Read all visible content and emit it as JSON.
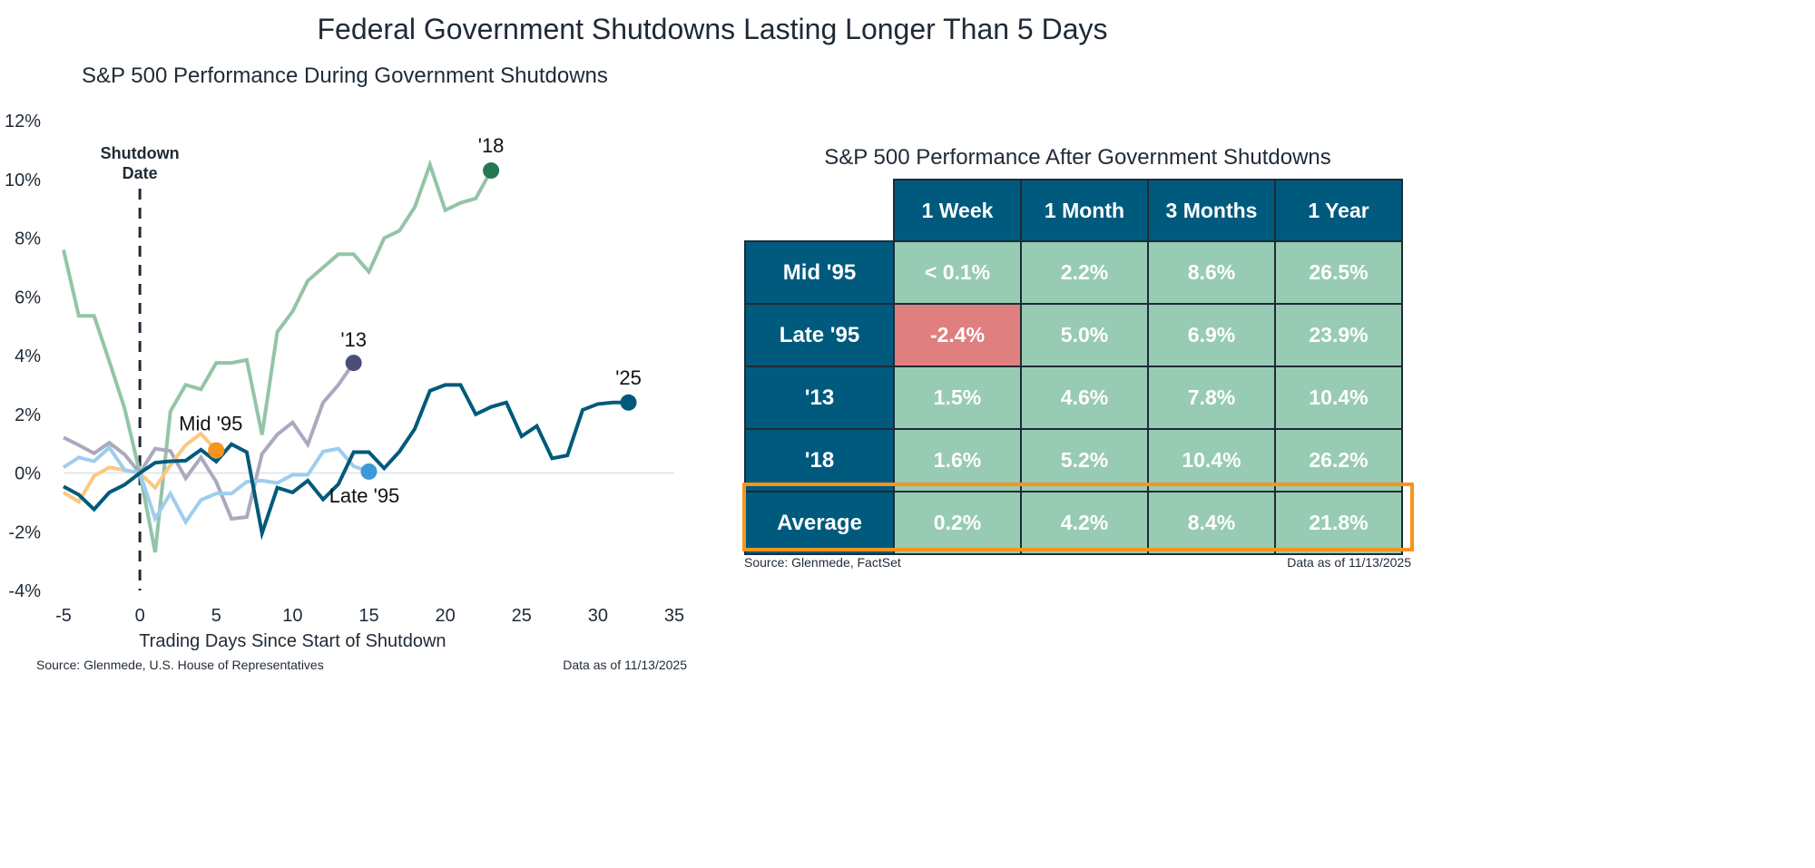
{
  "title": "Federal Government Shutdowns Lasting Longer Than 5 Days",
  "chart_data": [
    {
      "type": "line",
      "title": "S&P 500 Performance During Government Shutdowns",
      "xlabel": "Trading Days Since Start of Shutdown",
      "ylabel": "",
      "xlim": [
        -5,
        35
      ],
      "ylim": [
        -4,
        12
      ],
      "xticks": [
        "-5",
        "0",
        "5",
        "10",
        "15",
        "20",
        "25",
        "30",
        "35"
      ],
      "yticks": [
        "-4%",
        "-2%",
        "0%",
        "2%",
        "4%",
        "6%",
        "8%",
        "10%",
        "12%"
      ],
      "grid": false,
      "annotation": "Shutdown Date",
      "series": [
        {
          "name": "'18",
          "color": "#94c4a8",
          "dot_color": "#237a52",
          "x_start": -5,
          "values": [
            7.6,
            5.35,
            5.35,
            3.8,
            2.2,
            0,
            -2.7,
            2.1,
            3.0,
            2.85,
            3.75,
            3.75,
            3.85,
            1.3,
            4.8,
            5.5,
            6.55,
            7.0,
            7.45,
            7.45,
            6.85,
            8.0,
            8.25,
            9.05,
            10.5,
            8.95,
            9.2,
            9.35,
            10.3
          ]
        },
        {
          "name": "'13",
          "color": "#a9aabf",
          "dot_color": "#4b4f78",
          "x_start": -5,
          "values": [
            1.21,
            0.95,
            0.67,
            1.03,
            0.63,
            0,
            0.83,
            0.75,
            -0.18,
            0.53,
            -0.3,
            -1.56,
            -1.5,
            0.65,
            1.31,
            1.72,
            0.97,
            2.4,
            3.0,
            3.75
          ]
        },
        {
          "name": "Mid '95",
          "color": "#fcc780",
          "dot_color": "#f7941d",
          "x_start": -5,
          "values": [
            -0.66,
            -0.98,
            -0.1,
            0.19,
            0.1,
            0,
            -0.5,
            0.27,
            0.95,
            1.34,
            0.77
          ]
        },
        {
          "name": "Late '95",
          "color": "#9fcdee",
          "dot_color": "#3d98d8",
          "x_start": -5,
          "values": [
            0.19,
            0.53,
            0.4,
            0.87,
            0.1,
            0,
            -1.55,
            -0.7,
            -1.67,
            -0.92,
            -0.7,
            -0.7,
            -0.3,
            -0.26,
            -0.34,
            -0.06,
            -0.06,
            0.73,
            0.83,
            0.23,
            0.05
          ]
        },
        {
          "name": "'25",
          "color": "#005a7a",
          "dot_color": "#005a7a",
          "x_start": -5,
          "values": [
            -0.46,
            -0.74,
            -1.24,
            -0.66,
            -0.4,
            0,
            0.35,
            0.4,
            0.42,
            0.79,
            0.39,
            0.98,
            0.71,
            -2.05,
            -0.5,
            -0.66,
            -0.26,
            -0.9,
            -0.38,
            0.71,
            0.71,
            0.16,
            0.73,
            1.5,
            2.8,
            3.0,
            3.0,
            2.0,
            2.25,
            2.4,
            1.25,
            1.6,
            0.5,
            0.6,
            2.15,
            2.35,
            2.4,
            2.4
          ]
        }
      ],
      "source": "Source: Glenmede, U.S. House of Representatives",
      "date": "Data as of 11/13/2025"
    },
    {
      "type": "table",
      "title": "S&P 500 Performance After Government Shutdowns",
      "columns": [
        "1 Week",
        "1 Month",
        "3 Months",
        "1 Year"
      ],
      "rows": [
        {
          "label": "Mid '95",
          "values": [
            "< 0.1%",
            "2.2%",
            "8.6%",
            "26.5%"
          ]
        },
        {
          "label": "Late '95",
          "values": [
            "-2.4%",
            "5.0%",
            "6.9%",
            "23.9%"
          ]
        },
        {
          "label": "'13",
          "values": [
            "1.5%",
            "4.6%",
            "7.8%",
            "10.4%"
          ]
        },
        {
          "label": "'18",
          "values": [
            "1.6%",
            "5.2%",
            "10.4%",
            "26.2%"
          ]
        },
        {
          "label": "Average",
          "values": [
            "0.2%",
            "4.2%",
            "8.4%",
            "21.8%"
          ],
          "highlighted": true
        }
      ],
      "colors": {
        "header": "#005a7e",
        "positive": "#98cbb3",
        "negative": "#e07f7f",
        "highlight": "#f7941d"
      },
      "source": "Source: Glenmede, FactSet",
      "date": "Data as of 11/13/2025"
    }
  ]
}
